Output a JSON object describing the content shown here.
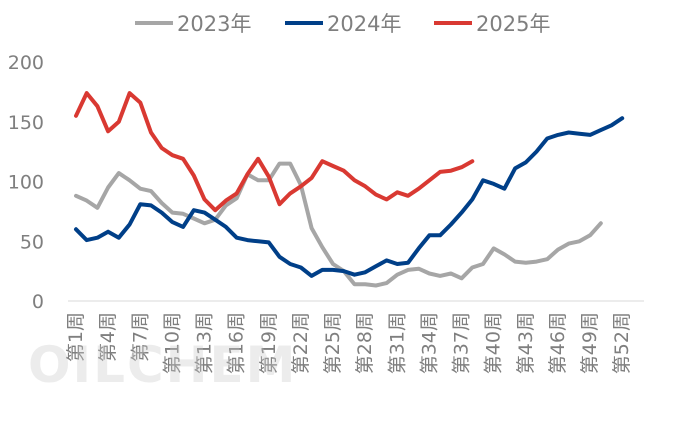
{
  "chart_data": {
    "type": "line",
    "title": "",
    "xlabel": "",
    "ylabel": "",
    "ylim": [
      0,
      200
    ],
    "yticks": [
      0,
      50,
      100,
      150,
      200
    ],
    "categories": [
      "第1周",
      "第2周",
      "第3周",
      "第4周",
      "第5周",
      "第6周",
      "第7周",
      "第8周",
      "第9周",
      "第10周",
      "第11周",
      "第12周",
      "第13周",
      "第14周",
      "第15周",
      "第16周",
      "第17周",
      "第18周",
      "第19周",
      "第20周",
      "第21周",
      "第22周",
      "第23周",
      "第24周",
      "第25周",
      "第26周",
      "第27周",
      "第28周",
      "第29周",
      "第30周",
      "第31周",
      "第32周",
      "第33周",
      "第34周",
      "第35周",
      "第36周",
      "第37周",
      "第38周",
      "第39周",
      "第40周",
      "第41周",
      "第42周",
      "第43周",
      "第44周",
      "第45周",
      "第46周",
      "第47周",
      "第48周",
      "第49周",
      "第50周",
      "第51周",
      "第52周"
    ],
    "tick_labels": [
      "第1周",
      "第4周",
      "第7周",
      "第10周",
      "第13周",
      "第16周",
      "第19周",
      "第22周",
      "第25周",
      "第28周",
      "第31周",
      "第34周",
      "第37周",
      "第40周",
      "第43周",
      "第46周",
      "第49周",
      "第52周"
    ],
    "grid": false,
    "legend_position": "top",
    "series": [
      {
        "name": "2023年",
        "color": "#a6a6a6",
        "values": [
          88,
          84,
          78,
          95,
          107,
          101,
          94,
          92,
          82,
          74,
          73,
          69,
          65,
          68,
          80,
          86,
          106,
          101,
          101,
          115,
          115,
          97,
          61,
          45,
          31,
          25,
          14,
          14,
          13,
          15,
          22,
          26,
          27,
          23,
          21,
          23,
          19,
          28,
          31,
          44,
          39,
          33,
          32,
          33,
          35,
          43,
          48,
          50,
          55,
          65,
          null,
          null
        ]
      },
      {
        "name": "2024年",
        "color": "#003f88",
        "values": [
          60,
          51,
          53,
          58,
          53,
          64,
          81,
          80,
          74,
          66,
          62,
          76,
          74,
          68,
          62,
          53,
          51,
          50,
          49,
          37,
          31,
          28,
          21,
          26,
          26,
          25,
          22,
          24,
          29,
          34,
          31,
          32,
          44,
          55,
          55,
          64,
          74,
          85,
          101,
          98,
          94,
          111,
          116,
          125,
          136,
          139,
          141,
          140,
          139,
          143,
          147,
          153
        ]
      },
      {
        "name": "2025年",
        "color": "#d93932",
        "values": [
          155,
          174,
          163,
          142,
          150,
          174,
          166,
          141,
          128,
          122,
          119,
          105,
          85,
          76,
          84,
          90,
          106,
          119,
          104,
          81,
          90,
          96,
          103,
          117,
          113,
          109,
          101,
          96,
          89,
          85,
          91,
          88,
          94,
          101,
          108,
          109,
          112,
          117,
          null,
          null,
          null,
          null,
          null,
          null,
          null,
          null,
          null,
          null,
          null,
          null,
          null,
          null
        ]
      }
    ]
  },
  "watermark": "OILCHEM"
}
